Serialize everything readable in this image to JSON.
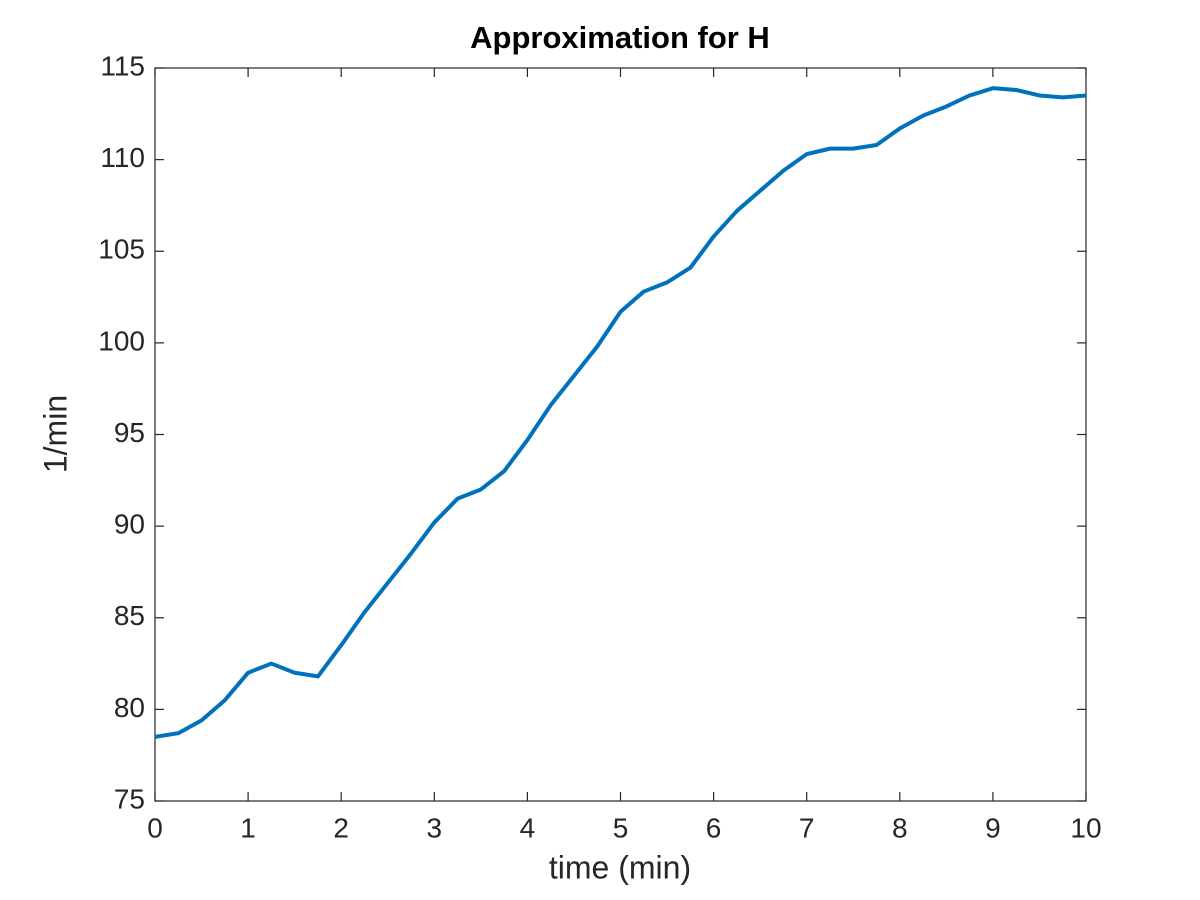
{
  "chart_data": {
    "type": "line",
    "title": "Approximation for H",
    "xlabel": "time (min)",
    "ylabel": "1/min",
    "x": [
      0,
      0.25,
      0.5,
      0.75,
      1,
      1.25,
      1.5,
      1.75,
      2,
      2.25,
      2.5,
      2.75,
      3,
      3.25,
      3.5,
      3.75,
      4,
      4.25,
      4.5,
      4.75,
      5,
      5.25,
      5.5,
      5.75,
      6,
      6.25,
      6.5,
      6.75,
      7,
      7.25,
      7.5,
      7.75,
      8,
      8.25,
      8.5,
      8.75,
      9,
      9.25,
      9.5,
      9.75,
      10
    ],
    "series": [
      {
        "name": "H",
        "color": "#0072bd",
        "values": [
          78.5,
          78.7,
          79.4,
          80.5,
          82.0,
          82.5,
          82.0,
          81.8,
          83.5,
          85.3,
          86.9,
          88.5,
          90.2,
          91.5,
          92.0,
          93.0,
          94.7,
          96.6,
          98.2,
          99.8,
          101.7,
          102.8,
          103.3,
          104.1,
          105.8,
          107.2,
          108.3,
          109.4,
          110.3,
          110.6,
          110.6,
          110.8,
          111.7,
          112.4,
          112.9,
          113.5,
          113.9,
          113.8,
          113.5,
          113.4,
          113.5
        ]
      }
    ],
    "xlim": [
      0,
      10
    ],
    "xticks": [
      0,
      1,
      2,
      3,
      4,
      5,
      6,
      7,
      8,
      9,
      10
    ],
    "ylim": [
      75,
      115
    ],
    "yticks": [
      75,
      80,
      85,
      90,
      95,
      100,
      105,
      110,
      115
    ],
    "grid": false
  }
}
